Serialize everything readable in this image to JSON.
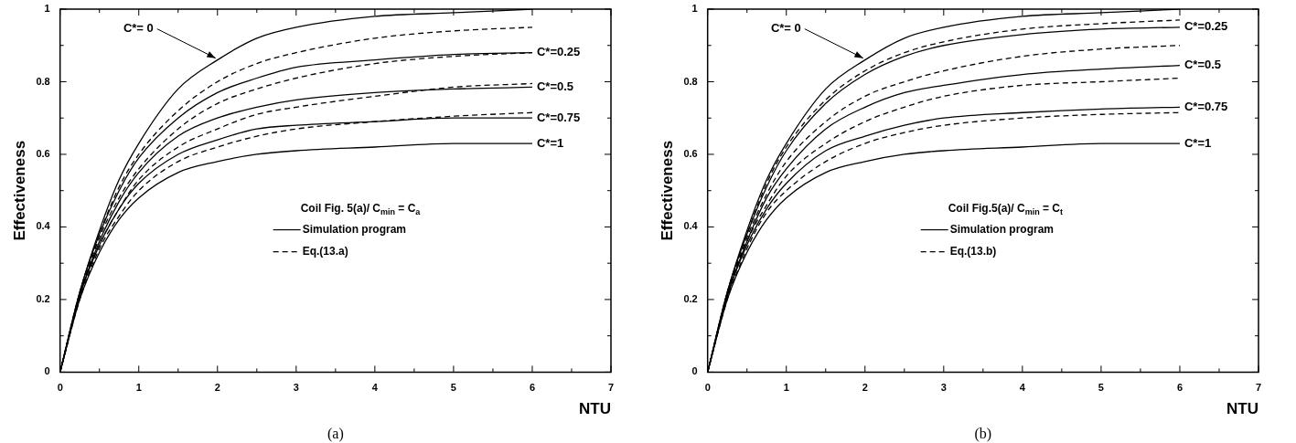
{
  "chart_data": [
    {
      "type": "line",
      "xlabel": "NTU",
      "ylabel": "Effectiveness",
      "legend_title": "Coil Fig. 5(a)/ C$_{min}$ = C$_{a}$",
      "legend": "center",
      "grid": false,
      "marker": "none",
      "x": [
        0,
        0.25,
        0.5,
        0.75,
        1,
        1.5,
        2,
        2.5,
        3,
        4,
        5,
        6
      ],
      "xlim": [
        0,
        7
      ],
      "xticks": [
        0,
        {
          "value": 0.5,
          "label": null
        },
        1,
        {
          "value": 1.5,
          "label": null
        },
        2,
        {
          "value": 2.5,
          "label": null
        },
        3,
        {
          "value": 3.5,
          "label": null
        },
        4,
        {
          "value": 4.5,
          "label": null
        },
        5,
        {
          "value": 5.5,
          "label": null
        },
        6,
        {
          "value": 6.5,
          "label": null
        },
        7
      ],
      "ylim": [
        0,
        1
      ],
      "yticks": [
        0,
        {
          "value": 0.1,
          "label": null
        },
        0.2,
        {
          "value": 0.3,
          "label": null
        },
        0.4,
        {
          "value": 0.5,
          "label": null
        },
        0.6,
        {
          "value": 0.7,
          "label": null
        },
        0.8,
        {
          "value": 0.9,
          "label": null
        },
        1
      ],
      "series": [
        {
          "name": "Simulation program",
          "color": "#000000",
          "line_style": "solid",
          "values": [
            0,
            0.22,
            0.39,
            0.53,
            0.63,
            0.78,
            0.86,
            0.92,
            0.95,
            0.98,
            0.99,
            1.0
          ]
        },
        {
          "color": "#000000",
          "line_style": "solid",
          "values": [
            0,
            0.22,
            0.38,
            0.5,
            0.59,
            0.7,
            0.77,
            0.81,
            0.84,
            0.86,
            0.875,
            0.88
          ]
        },
        {
          "color": "#000000",
          "line_style": "solid",
          "values": [
            0,
            0.21,
            0.36,
            0.47,
            0.55,
            0.65,
            0.7,
            0.73,
            0.75,
            0.77,
            0.78,
            0.785
          ]
        },
        {
          "color": "#000000",
          "line_style": "solid",
          "values": [
            0,
            0.21,
            0.35,
            0.45,
            0.52,
            0.6,
            0.64,
            0.67,
            0.68,
            0.69,
            0.7,
            0.7
          ]
        },
        {
          "color": "#000000",
          "line_style": "solid",
          "values": [
            0,
            0.2,
            0.33,
            0.42,
            0.48,
            0.55,
            0.58,
            0.6,
            0.61,
            0.62,
            0.63,
            0.63
          ]
        },
        {
          "name": "Eq.(13.a)",
          "color": "#000000",
          "line_style": "dashed",
          "values": [
            0,
            0.22,
            0.38,
            0.51,
            0.6,
            0.72,
            0.8,
            0.85,
            0.88,
            0.92,
            0.94,
            0.95
          ]
        },
        {
          "color": "#000000",
          "line_style": "dashed",
          "values": [
            0,
            0.21,
            0.37,
            0.48,
            0.56,
            0.67,
            0.74,
            0.78,
            0.81,
            0.85,
            0.87,
            0.88
          ]
        },
        {
          "color": "#000000",
          "line_style": "dashed",
          "values": [
            0,
            0.21,
            0.35,
            0.45,
            0.53,
            0.62,
            0.67,
            0.71,
            0.73,
            0.76,
            0.785,
            0.795
          ]
        },
        {
          "color": "#000000",
          "line_style": "dashed",
          "values": [
            0,
            0.2,
            0.34,
            0.43,
            0.5,
            0.58,
            0.62,
            0.65,
            0.67,
            0.69,
            0.705,
            0.715
          ]
        }
      ],
      "title": "(a)",
      "annotations": [
        {
          "text": "C*= 0",
          "x": 2,
          "y": 0.86
        },
        "C*=0.25",
        "C*=0.5",
        "C*=0.75",
        "C*=1"
      ]
    },
    {
      "type": "line",
      "xlabel": "NTU",
      "ylabel": "Effectiveness",
      "legend_title": "Coil Fig.5(a)/ C$_{min}$ = C$_{t}$",
      "legend": "center",
      "grid": false,
      "marker": "none",
      "x": [
        0,
        0.25,
        0.5,
        0.75,
        1,
        1.5,
        2,
        2.5,
        3,
        4,
        5,
        6
      ],
      "xlim": [
        0,
        7
      ],
      "xticks": [
        0,
        {
          "value": 0.5,
          "label": null
        },
        1,
        {
          "value": 1.5,
          "label": null
        },
        2,
        {
          "value": 2.5,
          "label": null
        },
        3,
        {
          "value": 3.5,
          "label": null
        },
        4,
        {
          "value": 4.5,
          "label": null
        },
        5,
        {
          "value": 5.5,
          "label": null
        },
        6,
        {
          "value": 6.5,
          "label": null
        },
        7
      ],
      "ylim": [
        0,
        1
      ],
      "yticks": [
        0,
        {
          "value": 0.1,
          "label": null
        },
        0.2,
        {
          "value": 0.3,
          "label": null
        },
        0.4,
        {
          "value": 0.5,
          "label": null
        },
        0.6,
        {
          "value": 0.7,
          "label": null
        },
        0.8,
        {
          "value": 0.9,
          "label": null
        },
        1
      ],
      "series": [
        {
          "name": "Simulation program",
          "color": "#000000",
          "line_style": "solid",
          "values": [
            0,
            0.22,
            0.39,
            0.53,
            0.63,
            0.78,
            0.86,
            0.92,
            0.95,
            0.98,
            0.99,
            1.0
          ]
        },
        {
          "color": "#000000",
          "line_style": "solid",
          "values": [
            0,
            0.22,
            0.38,
            0.51,
            0.61,
            0.74,
            0.82,
            0.87,
            0.9,
            0.93,
            0.945,
            0.95
          ]
        },
        {
          "color": "#000000",
          "line_style": "solid",
          "values": [
            0,
            0.21,
            0.36,
            0.48,
            0.56,
            0.67,
            0.73,
            0.77,
            0.79,
            0.82,
            0.835,
            0.845
          ]
        },
        {
          "color": "#000000",
          "line_style": "solid",
          "values": [
            0,
            0.21,
            0.35,
            0.45,
            0.52,
            0.61,
            0.65,
            0.68,
            0.7,
            0.715,
            0.725,
            0.73
          ]
        },
        {
          "color": "#000000",
          "line_style": "solid",
          "values": [
            0,
            0.2,
            0.33,
            0.42,
            0.48,
            0.55,
            0.58,
            0.6,
            0.61,
            0.62,
            0.63,
            0.63
          ]
        },
        {
          "name": "Eq.(13.b)",
          "color": "#000000",
          "line_style": "dashed",
          "values": [
            0,
            0.22,
            0.38,
            0.52,
            0.62,
            0.75,
            0.83,
            0.88,
            0.91,
            0.945,
            0.96,
            0.97
          ]
        },
        {
          "color": "#000000",
          "line_style": "dashed",
          "values": [
            0,
            0.21,
            0.37,
            0.49,
            0.58,
            0.69,
            0.76,
            0.8,
            0.83,
            0.87,
            0.89,
            0.9
          ]
        },
        {
          "color": "#000000",
          "line_style": "dashed",
          "values": [
            0,
            0.21,
            0.36,
            0.46,
            0.54,
            0.63,
            0.69,
            0.73,
            0.76,
            0.79,
            0.8,
            0.81
          ]
        },
        {
          "color": "#000000",
          "line_style": "dashed",
          "values": [
            0,
            0.2,
            0.34,
            0.44,
            0.5,
            0.58,
            0.63,
            0.66,
            0.68,
            0.7,
            0.71,
            0.715
          ]
        }
      ],
      "title": "(b)",
      "annotations": [
        {
          "text": "C*= 0",
          "x": 2,
          "y": 0.86
        },
        "C*=0.25",
        "C*=0.5",
        "C*=0.75",
        "C*=1"
      ]
    }
  ]
}
